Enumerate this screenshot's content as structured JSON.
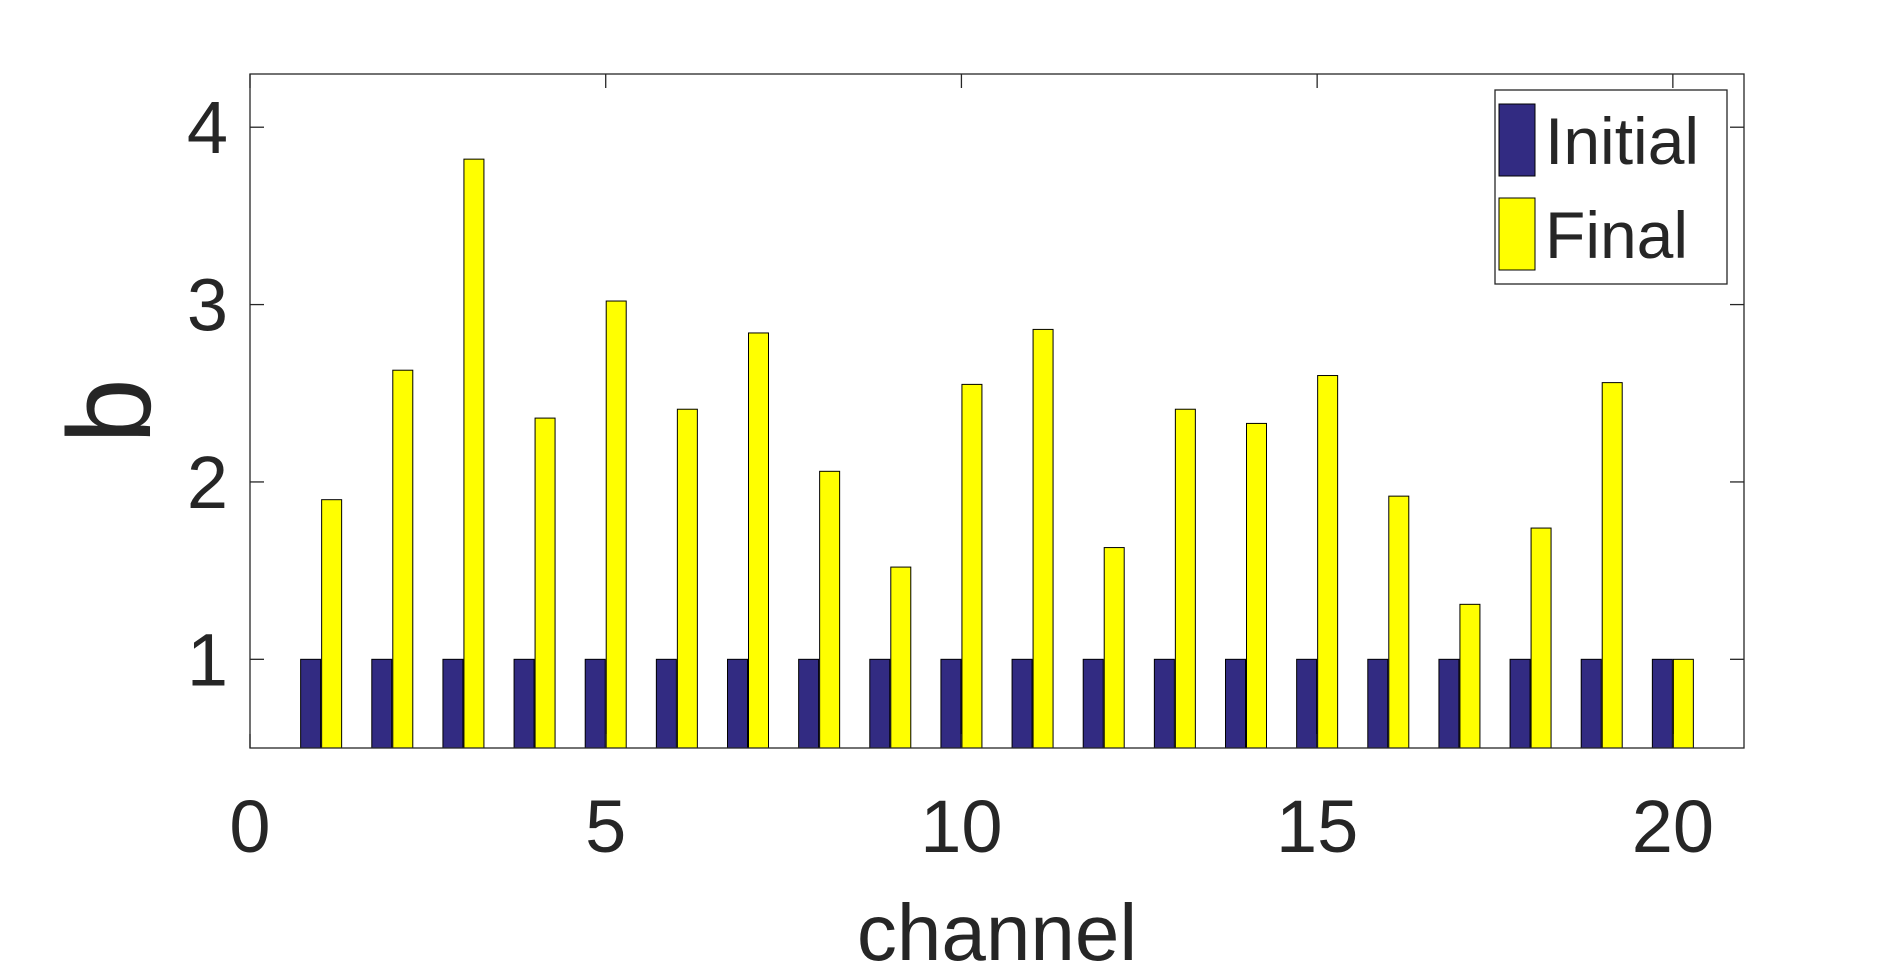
{
  "chart_data": {
    "type": "bar",
    "title": "",
    "xlabel": "channel",
    "ylabel": "b",
    "xlim": [
      0,
      21
    ],
    "ylim": [
      0.5,
      4.3
    ],
    "xticks": [
      0,
      5,
      10,
      15,
      20
    ],
    "yticks": [
      1,
      2,
      3,
      4
    ],
    "grid": false,
    "legend_position": "top-right",
    "categories": [
      1,
      2,
      3,
      4,
      5,
      6,
      7,
      8,
      9,
      10,
      11,
      12,
      13,
      14,
      15,
      16,
      17,
      18,
      19,
      20
    ],
    "series": [
      {
        "name": "Initial",
        "color": "#322B82",
        "values": [
          1,
          1,
          1,
          1,
          1,
          1,
          1,
          1,
          1,
          1,
          1,
          1,
          1,
          1,
          1,
          1,
          1,
          1,
          1,
          1
        ]
      },
      {
        "name": "Final",
        "color": "#FFFF00",
        "values": [
          1.9,
          2.63,
          3.82,
          2.36,
          3.02,
          2.41,
          2.84,
          2.06,
          1.52,
          2.55,
          2.86,
          1.63,
          2.41,
          2.33,
          2.6,
          1.92,
          1.31,
          1.74,
          2.56,
          1.0
        ]
      }
    ]
  }
}
